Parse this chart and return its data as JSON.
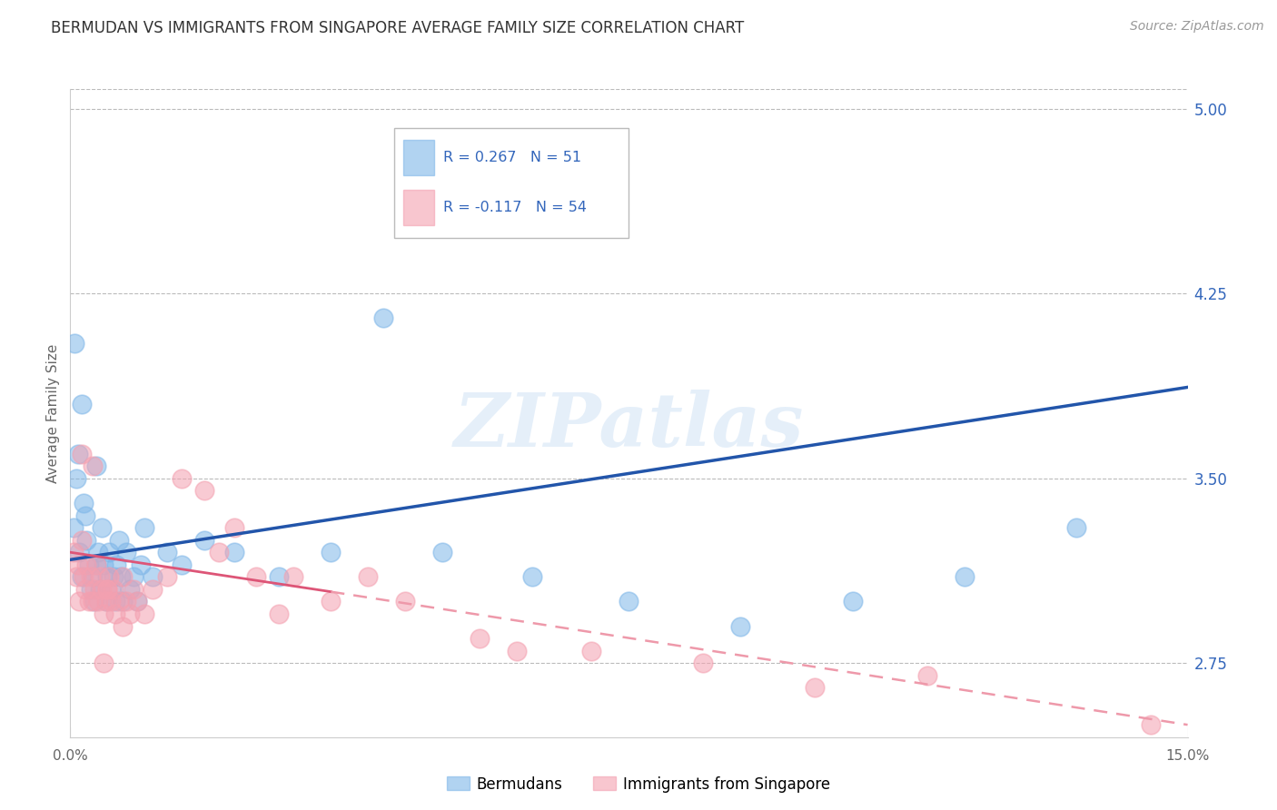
{
  "title": "BERMUDAN VS IMMIGRANTS FROM SINGAPORE AVERAGE FAMILY SIZE CORRELATION CHART",
  "source": "Source: ZipAtlas.com",
  "ylabel": "Average Family Size",
  "watermark": "ZIPatlas",
  "legend_blue_label": "Bermudans",
  "legend_pink_label": "Immigrants from Singapore",
  "xmin": 0.0,
  "xmax": 15.0,
  "ymin": 2.45,
  "ymax": 5.08,
  "yticks": [
    2.75,
    3.5,
    4.25,
    5.0
  ],
  "blue_color": "#7EB6E8",
  "pink_color": "#F4A0B0",
  "blue_line_color": "#2255AA",
  "pink_solid_color": "#DD5577",
  "pink_dash_color": "#EE99AA",
  "title_color": "#333333",
  "right_axis_color": "#3366BB",
  "blue_scatter_x": [
    0.05,
    0.08,
    0.1,
    0.12,
    0.15,
    0.18,
    0.2,
    0.22,
    0.25,
    0.28,
    0.3,
    0.32,
    0.35,
    0.38,
    0.4,
    0.42,
    0.45,
    0.48,
    0.5,
    0.52,
    0.55,
    0.58,
    0.6,
    0.62,
    0.65,
    0.68,
    0.7,
    0.75,
    0.8,
    0.85,
    0.9,
    0.95,
    1.0,
    1.1,
    1.3,
    1.5,
    1.8,
    2.2,
    2.8,
    3.5,
    4.2,
    5.0,
    6.2,
    7.5,
    9.0,
    10.5,
    12.0,
    13.5,
    0.06,
    0.15,
    0.35
  ],
  "blue_scatter_y": [
    3.3,
    3.5,
    3.6,
    3.2,
    3.1,
    3.4,
    3.35,
    3.25,
    3.15,
    3.05,
    3.1,
    3.0,
    3.15,
    3.2,
    3.05,
    3.3,
    3.15,
    3.0,
    3.1,
    3.2,
    3.05,
    3.1,
    3.0,
    3.15,
    3.25,
    3.1,
    3.0,
    3.2,
    3.05,
    3.1,
    3.0,
    3.15,
    3.3,
    3.1,
    3.2,
    3.15,
    3.25,
    3.2,
    3.1,
    3.2,
    4.15,
    3.2,
    3.1,
    3.0,
    2.9,
    3.0,
    3.1,
    3.3,
    4.05,
    3.8,
    3.55
  ],
  "pink_scatter_x": [
    0.05,
    0.08,
    0.1,
    0.12,
    0.15,
    0.18,
    0.2,
    0.22,
    0.25,
    0.28,
    0.3,
    0.32,
    0.35,
    0.38,
    0.4,
    0.42,
    0.45,
    0.48,
    0.5,
    0.52,
    0.55,
    0.58,
    0.6,
    0.65,
    0.7,
    0.75,
    0.8,
    0.85,
    0.9,
    1.0,
    1.1,
    1.3,
    1.5,
    1.8,
    2.0,
    2.5,
    3.0,
    3.5,
    4.5,
    5.5,
    7.0,
    8.5,
    10.0,
    11.5,
    2.2,
    2.8,
    4.0,
    6.0,
    0.15,
    0.3,
    0.5,
    0.7,
    0.45,
    14.5
  ],
  "pink_scatter_y": [
    3.2,
    3.1,
    3.15,
    3.0,
    3.25,
    3.1,
    3.05,
    3.15,
    3.0,
    3.1,
    3.0,
    3.05,
    3.15,
    3.0,
    3.1,
    3.05,
    2.95,
    3.0,
    3.05,
    3.1,
    3.0,
    3.05,
    2.95,
    3.0,
    3.1,
    3.0,
    2.95,
    3.05,
    3.0,
    2.95,
    3.05,
    3.1,
    3.5,
    3.45,
    3.2,
    3.1,
    3.1,
    3.0,
    3.0,
    2.85,
    2.8,
    2.75,
    2.65,
    2.7,
    3.3,
    2.95,
    3.1,
    2.8,
    3.6,
    3.55,
    3.05,
    2.9,
    2.75,
    2.5
  ],
  "blue_line_x0": 0.0,
  "blue_line_y0": 3.17,
  "blue_line_x1": 15.0,
  "blue_line_y1": 3.87,
  "pink_solid_x0": 0.0,
  "pink_solid_y0": 3.2,
  "pink_solid_x1": 3.5,
  "pink_solid_y1": 3.04,
  "pink_dash_x0": 3.5,
  "pink_dash_y0": 3.04,
  "pink_dash_x1": 15.0,
  "pink_dash_y1": 2.5
}
